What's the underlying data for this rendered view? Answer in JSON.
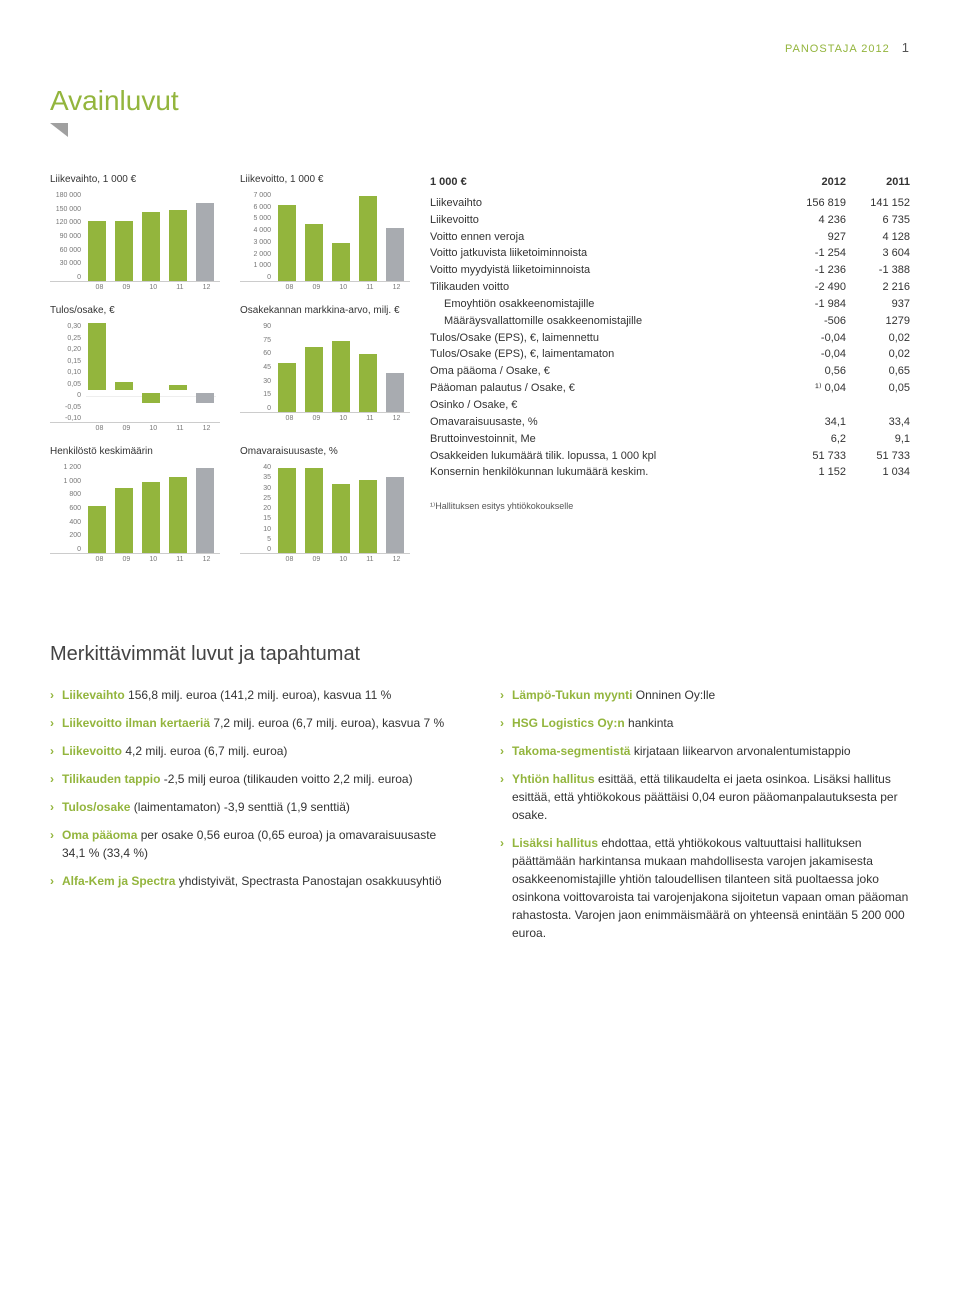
{
  "page_header": "PANOSTAJA 2012",
  "page_number": "1",
  "title": "Avainluvut",
  "green": "#93b53d",
  "gray": "#a8abb0",
  "years": [
    "08",
    "09",
    "10",
    "11",
    "12"
  ],
  "charts": [
    {
      "title": "Liikevaihto, 1 000 €",
      "ticks": [
        "180 000",
        "150 000",
        "120 000",
        "90 000",
        "60 000",
        "30 000",
        "0"
      ],
      "ymax": 180000,
      "ymin": 0,
      "values": [
        122000,
        122000,
        140000,
        143000,
        157000
      ]
    },
    {
      "title": "Liikevoitto, 1 000 €",
      "ticks": [
        "7 000",
        "6 000",
        "5 000",
        "4 000",
        "3 000",
        "2 000",
        "1 000",
        "0"
      ],
      "ymax": 7000,
      "ymin": 0,
      "values": [
        6000,
        4500,
        3000,
        6700,
        4200
      ]
    },
    {
      "title": "Tulos/osake, €",
      "ticks": [
        "0,30",
        "0,25",
        "0,20",
        "0,15",
        "0,10",
        "0,05",
        "0",
        "-0,05",
        "-0,10"
      ],
      "ymax": 0.3,
      "ymin": -0.1,
      "values": [
        0.27,
        0.03,
        -0.04,
        0.02,
        -0.04
      ],
      "neg": true
    },
    {
      "title": "Osakekannan\nmarkkina-arvo, milj. €",
      "ticks": [
        "90",
        "75",
        "60",
        "45",
        "30",
        "15",
        "0"
      ],
      "ymax": 90,
      "ymin": 0,
      "values": [
        50,
        66,
        72,
        59,
        39
      ]
    },
    {
      "title": "Henkilöstö keskimäärin",
      "ticks": [
        "1 200",
        "1 000",
        "800",
        "600",
        "400",
        "200",
        "0"
      ],
      "ymax": 1200,
      "ymin": 0,
      "values": [
        640,
        880,
        960,
        1030,
        1150
      ]
    },
    {
      "title": "Omavaraisuusaste, %",
      "ticks": [
        "40",
        "35",
        "30",
        "25",
        "20",
        "15",
        "10",
        "5",
        "0"
      ],
      "ymax": 40,
      "ymin": 0,
      "values": [
        38,
        38,
        31,
        33,
        34
      ]
    }
  ],
  "table_header": {
    "c0": "1 000 €",
    "c1": "2012",
    "c2": "2011"
  },
  "table": [
    {
      "l": "Liikevaihto",
      "a": "156 819",
      "b": "141 152"
    },
    {
      "l": "Liikevoitto",
      "a": "4 236",
      "b": "6 735"
    },
    {
      "l": "Voitto ennen veroja",
      "a": "927",
      "b": "4 128"
    },
    {
      "l": "Voitto jatkuvista liiketoiminnoista",
      "a": "-1 254",
      "b": "3 604"
    },
    {
      "l": "Voitto myydyistä liiketoiminnoista",
      "a": "-1 236",
      "b": "-1 388"
    },
    {
      "l": "Tilikauden voitto",
      "a": "-2 490",
      "b": "2 216"
    },
    {
      "l": "Emoyhtiön osakkeenomistajille",
      "a": "-1 984",
      "b": "937",
      "indent": true
    },
    {
      "l": "Määräysvallattomille osakkeenomistajille",
      "a": "-506",
      "b": "1279",
      "indent": true
    },
    {
      "l": "Tulos/Osake (EPS), €, laimennettu",
      "a": "-0,04",
      "b": "0,02"
    },
    {
      "l": "Tulos/Osake (EPS), €, laimentamaton",
      "a": "-0,04",
      "b": "0,02"
    },
    {
      "l": "Oma pääoma / Osake, €",
      "a": "0,56",
      "b": "0,65"
    },
    {
      "l": "Pääoman palautus / Osake, €",
      "a": "¹⁾ 0,04",
      "b": "0,05"
    },
    {
      "l": "Osinko / Osake, €",
      "a": "",
      "b": ""
    },
    {
      "l": "Omavaraisuusaste, %",
      "a": "34,1",
      "b": "33,4"
    },
    {
      "l": "Bruttoinvestoinnit, Me",
      "a": "6,2",
      "b": "9,1"
    },
    {
      "l": "Osakkeiden lukumäärä tilik. lopussa, 1 000 kpl",
      "a": "51 733",
      "b": "51 733"
    },
    {
      "l": "Konsernin henkilökunnan lukumäärä keskim.",
      "a": "1 152",
      "b": "1 034"
    }
  ],
  "footnote": "¹⁾Hallituksen esitys yhtiökokoukselle",
  "sec2_title": "Merkittävimmät luvut ja tapahtumat",
  "left": [
    {
      "g": "Liikevaihto",
      "t": " 156,8 milj. euroa (141,2 milj. euroa), kasvua 11 %"
    },
    {
      "g": "Liikevoitto ilman kertaeriä",
      "t": " 7,2 milj. euroa (6,7 milj. euroa), kasvua 7 %"
    },
    {
      "g": "Liikevoitto",
      "t": " 4,2 milj. euroa (6,7 milj. euroa)"
    },
    {
      "g": "Tilikauden tappio",
      "t": " -2,5 milj euroa (tilikauden voitto 2,2 milj. euroa)"
    },
    {
      "g": "Tulos/osake",
      "t": " (laimentamaton) -3,9 senttiä (1,9 senttiä)"
    },
    {
      "g": "Oma pääoma",
      "t": " per osake 0,56 euroa (0,65 euroa) ja omavaraisuusaste 34,1 % (33,4 %)"
    },
    {
      "g": "Alfa-Kem ja Spectra",
      "t": " yhdistyivät, Spectrasta Panostajan osakkuusyhtiö"
    }
  ],
  "right": [
    {
      "g": "Lämpö-Tukun myynti",
      "t": " Onninen Oy:lle"
    },
    {
      "g": "HSG Logistics Oy:n",
      "t": " hankinta"
    },
    {
      "g": "Takoma-segmentistä",
      "t": " kirjataan liikearvon arvonalentumistappio"
    },
    {
      "g": "Yhtiön hallitus",
      "t": " esittää, että tilikaudelta ei jaeta osinkoa. Lisäksi hallitus esittää, että yhtiökokous päättäisi 0,04 euron pääomanpalautuksesta per osake."
    },
    {
      "g": "Lisäksi hallitus",
      "t": " ehdottaa, että yhtiökokous valtuuttaisi hallituksen päättämään harkintansa mukaan mahdollisesta varojen jakamisesta osakkeenomistajille yhtiön taloudellisen tilanteen sitä puoltaessa joko osinkona voittovaroista tai varojenjakona sijoitetun vapaan oman pääoman rahastosta. Varojen jaon enimmäismäärä on yhteensä enintään 5 200 000 euroa."
    }
  ]
}
